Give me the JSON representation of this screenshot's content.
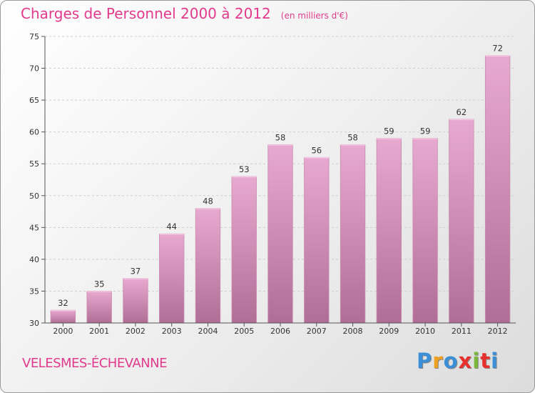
{
  "header": {
    "title": "Charges de Personnel 2000 à 2012",
    "subtitle": "(en milliers d'€)"
  },
  "footer": {
    "commune": "VELESMES-ÉCHEVANNE",
    "logo_letters": [
      "P",
      "r",
      "o",
      "x",
      "i",
      "t",
      "i"
    ],
    "logo_colors": [
      "#3a8fd6",
      "#f0a020",
      "#3a8fd6",
      "#e8312f",
      "#7ab83a",
      "#e8312f",
      "#3a8fd6"
    ]
  },
  "chart_data": {
    "type": "bar",
    "categories": [
      "2000",
      "2001",
      "2002",
      "2003",
      "2004",
      "2005",
      "2006",
      "2007",
      "2008",
      "2009",
      "2010",
      "2011",
      "2012"
    ],
    "values": [
      32,
      35,
      37,
      44,
      48,
      53,
      58,
      56,
      58,
      59,
      59,
      62,
      72
    ],
    "ylim": [
      30,
      75
    ],
    "yticks": [
      30,
      35,
      40,
      45,
      50,
      55,
      60,
      65,
      70,
      75
    ],
    "grid": true,
    "bar_color_top": "#e8a9d0",
    "bar_color_bottom": "#b06e96"
  }
}
